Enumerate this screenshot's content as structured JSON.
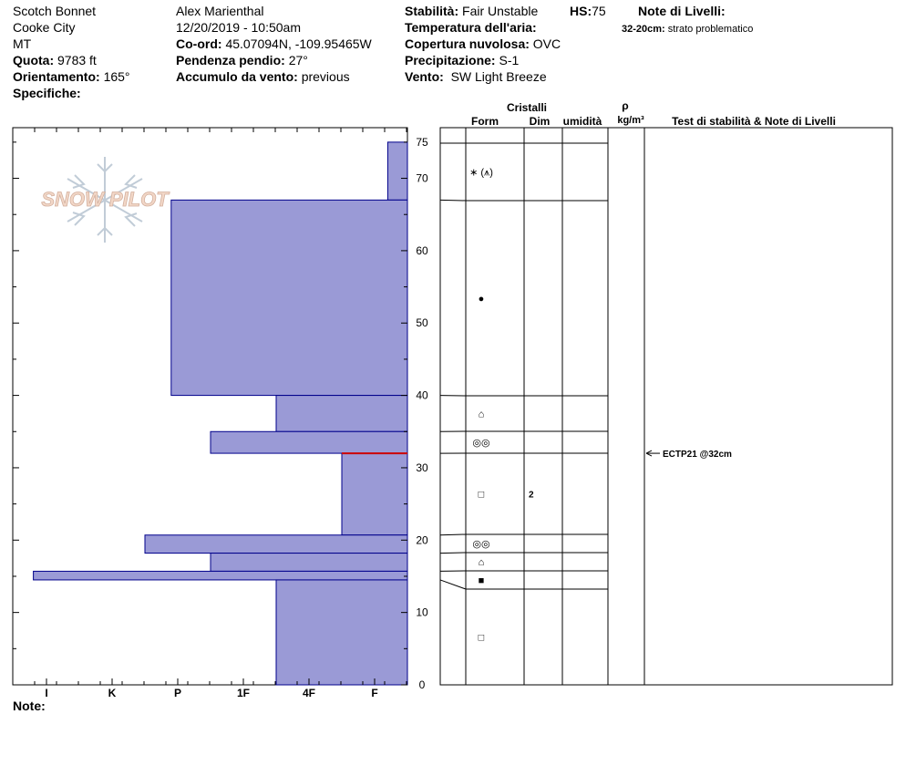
{
  "header": {
    "location": "Scotch Bonnet",
    "area": "Cooke City",
    "state": "MT",
    "elevation_label": "Quota:",
    "elevation": "9783 ft",
    "aspect_label": "Orientamento:",
    "aspect": "165°",
    "specifics_label": "Specifiche:",
    "observer": "Alex Marienthal",
    "datetime": "12/20/2019 - 10:50am",
    "coord_label": "Co-ord:",
    "coord": "45.07094N, -109.95465W",
    "slope_label": "Pendenza pendio:",
    "slope": "27°",
    "wind_loading_label": "Accumulo da vento:",
    "wind_loading": "previous",
    "stability_label": "Stabilità:",
    "stability": "Fair Unstable",
    "hs_label": "HS:",
    "hs": "75",
    "air_temp_label": "Temperatura dell'aria:",
    "air_temp": "",
    "cloud_label": "Copertura nuvolosa:",
    "cloud": "OVC",
    "precip_label": "Precipitazione:",
    "precip": "S-1",
    "wind_label": "Vento:",
    "wind": "SW Light Breeze",
    "layer_notes_label": "Note di Livelli:",
    "layer_note_range": "32-20cm:",
    "layer_note_text": "strato problematico"
  },
  "footer": {
    "note_label": "Note:"
  },
  "logo": {
    "text": "SNOW PILOT"
  },
  "table_headers": {
    "crystals": "Cristalli",
    "form": "Form",
    "size": "Dim",
    "moisture": "umidità",
    "density_symbol": "ρ",
    "density_unit": "kg/m³",
    "tests": "Test di stabilità & Note di Livelli"
  },
  "colors": {
    "layer_fill": "#9a9ad6",
    "layer_stroke": "#00008b",
    "red_line": "#cc0000"
  },
  "chart_data": {
    "type": "bar",
    "title": "",
    "xlabel": "",
    "ylabel": "",
    "hardness_ticks": [
      "I",
      "K",
      "P",
      "1F",
      "4F",
      "F"
    ],
    "depth_ticks": [
      "0",
      "10",
      "20",
      "30",
      "40",
      "50",
      "60",
      "70",
      "75"
    ],
    "ylim": [
      0,
      75
    ],
    "hardness_scale": "F=1, 4F=2, 1F=3, P=4, K=5, I=6",
    "layers": [
      {
        "top": 75,
        "bottom": 67,
        "hardness": 0.3,
        "form": "∗ (⩚)",
        "size": ""
      },
      {
        "top": 67,
        "bottom": 40,
        "hardness": 3.6,
        "form": "●",
        "size": ""
      },
      {
        "top": 40,
        "bottom": 35,
        "hardness": 2.0,
        "form": "⌂",
        "size": ""
      },
      {
        "top": 35,
        "bottom": 32,
        "hardness": 3.0,
        "form": "◎◎",
        "size": ""
      },
      {
        "top": 32,
        "bottom": 20.7,
        "hardness": 1.0,
        "form": "□",
        "size": "2"
      },
      {
        "top": 20.7,
        "bottom": 18.2,
        "hardness": 4.0,
        "form": "◎◎",
        "size": ""
      },
      {
        "top": 18.2,
        "bottom": 15.7,
        "hardness": 3.0,
        "form": "⌂",
        "size": ""
      },
      {
        "top": 15.7,
        "bottom": 14.5,
        "hardness": 5.7,
        "form": "■",
        "size": ""
      },
      {
        "top": 14.5,
        "bottom": 0,
        "hardness": 2.0,
        "form": "□",
        "size": ""
      }
    ],
    "problem_layer_depth": 32,
    "tests": [
      {
        "depth": 32,
        "label": "ECTP21 @32cm"
      }
    ]
  }
}
